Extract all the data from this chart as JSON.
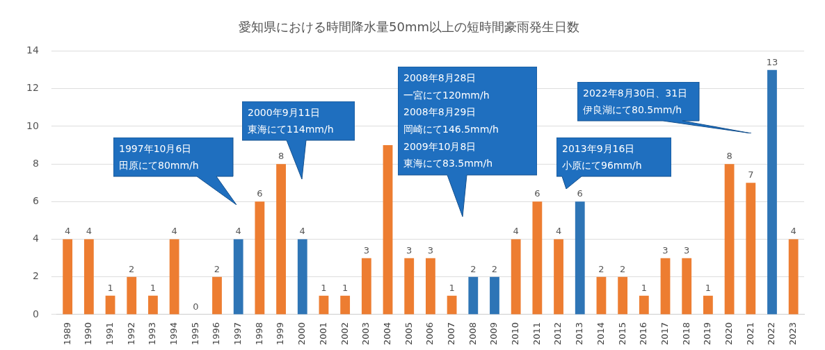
{
  "chart_data": {
    "type": "bar",
    "title": "愛知県における時間降水量50mm以上の短時間豪雨発生日数",
    "categories": [
      "1989",
      "1990",
      "1991",
      "1992",
      "1993",
      "1994",
      "1995",
      "1996",
      "1997",
      "1998",
      "1999",
      "2000",
      "2001",
      "2002",
      "2003",
      "2004",
      "2005",
      "2006",
      "2007",
      "2008",
      "2009",
      "2010",
      "2011",
      "2012",
      "2013",
      "2014",
      "2015",
      "2016",
      "2017",
      "2018",
      "2019",
      "2020",
      "2021",
      "2022",
      "2023"
    ],
    "values": [
      4,
      4,
      1,
      2,
      1,
      4,
      0,
      2,
      4,
      6,
      8,
      4,
      1,
      1,
      3,
      9,
      3,
      3,
      1,
      2,
      2,
      4,
      6,
      4,
      6,
      2,
      2,
      1,
      3,
      3,
      1,
      8,
      7,
      13,
      4
    ],
    "colors": [
      "#ed7d31",
      "#ed7d31",
      "#ed7d31",
      "#ed7d31",
      "#ed7d31",
      "#ed7d31",
      "#ed7d31",
      "#ed7d31",
      "#2e75b6",
      "#ed7d31",
      "#ed7d31",
      "#2e75b6",
      "#ed7d31",
      "#ed7d31",
      "#ed7d31",
      "#ed7d31",
      "#ed7d31",
      "#ed7d31",
      "#ed7d31",
      "#2e75b6",
      "#2e75b6",
      "#ed7d31",
      "#ed7d31",
      "#ed7d31",
      "#2e75b6",
      "#ed7d31",
      "#ed7d31",
      "#ed7d31",
      "#ed7d31",
      "#ed7d31",
      "#ed7d31",
      "#ed7d31",
      "#ed7d31",
      "#2e75b6",
      "#ed7d31"
    ],
    "value_labels": [
      "4",
      "4",
      "1",
      "2",
      "1",
      "4",
      "0",
      "2",
      "4",
      "6",
      "8",
      "4",
      "1",
      "1",
      "3",
      null,
      "3",
      "3",
      "1",
      "2",
      "2",
      "4",
      "6",
      "4",
      "6",
      "2",
      "2",
      "1",
      "3",
      "3",
      "1",
      "8",
      "7",
      "13",
      "4"
    ],
    "ylim": [
      0,
      14
    ],
    "yticks": [
      0,
      2,
      4,
      6,
      8,
      10,
      12,
      14
    ],
    "grid": "y",
    "legend": false,
    "annotations": [
      "1997年10月6日",
      "田原にて80mm/h",
      "2000年9月11日",
      "東海にて114mm/h",
      "2008年8月28日",
      "一宮にて120mm/h",
      "2008年8月29日",
      "岡崎にて146.5mm/h",
      "2009年10月8日",
      "東海にて83.5mm/h",
      "2013年9月16日",
      "小原にて96mm/h",
      "2022年8月30日、31日",
      "伊良湖にて80.5mm/h"
    ]
  }
}
